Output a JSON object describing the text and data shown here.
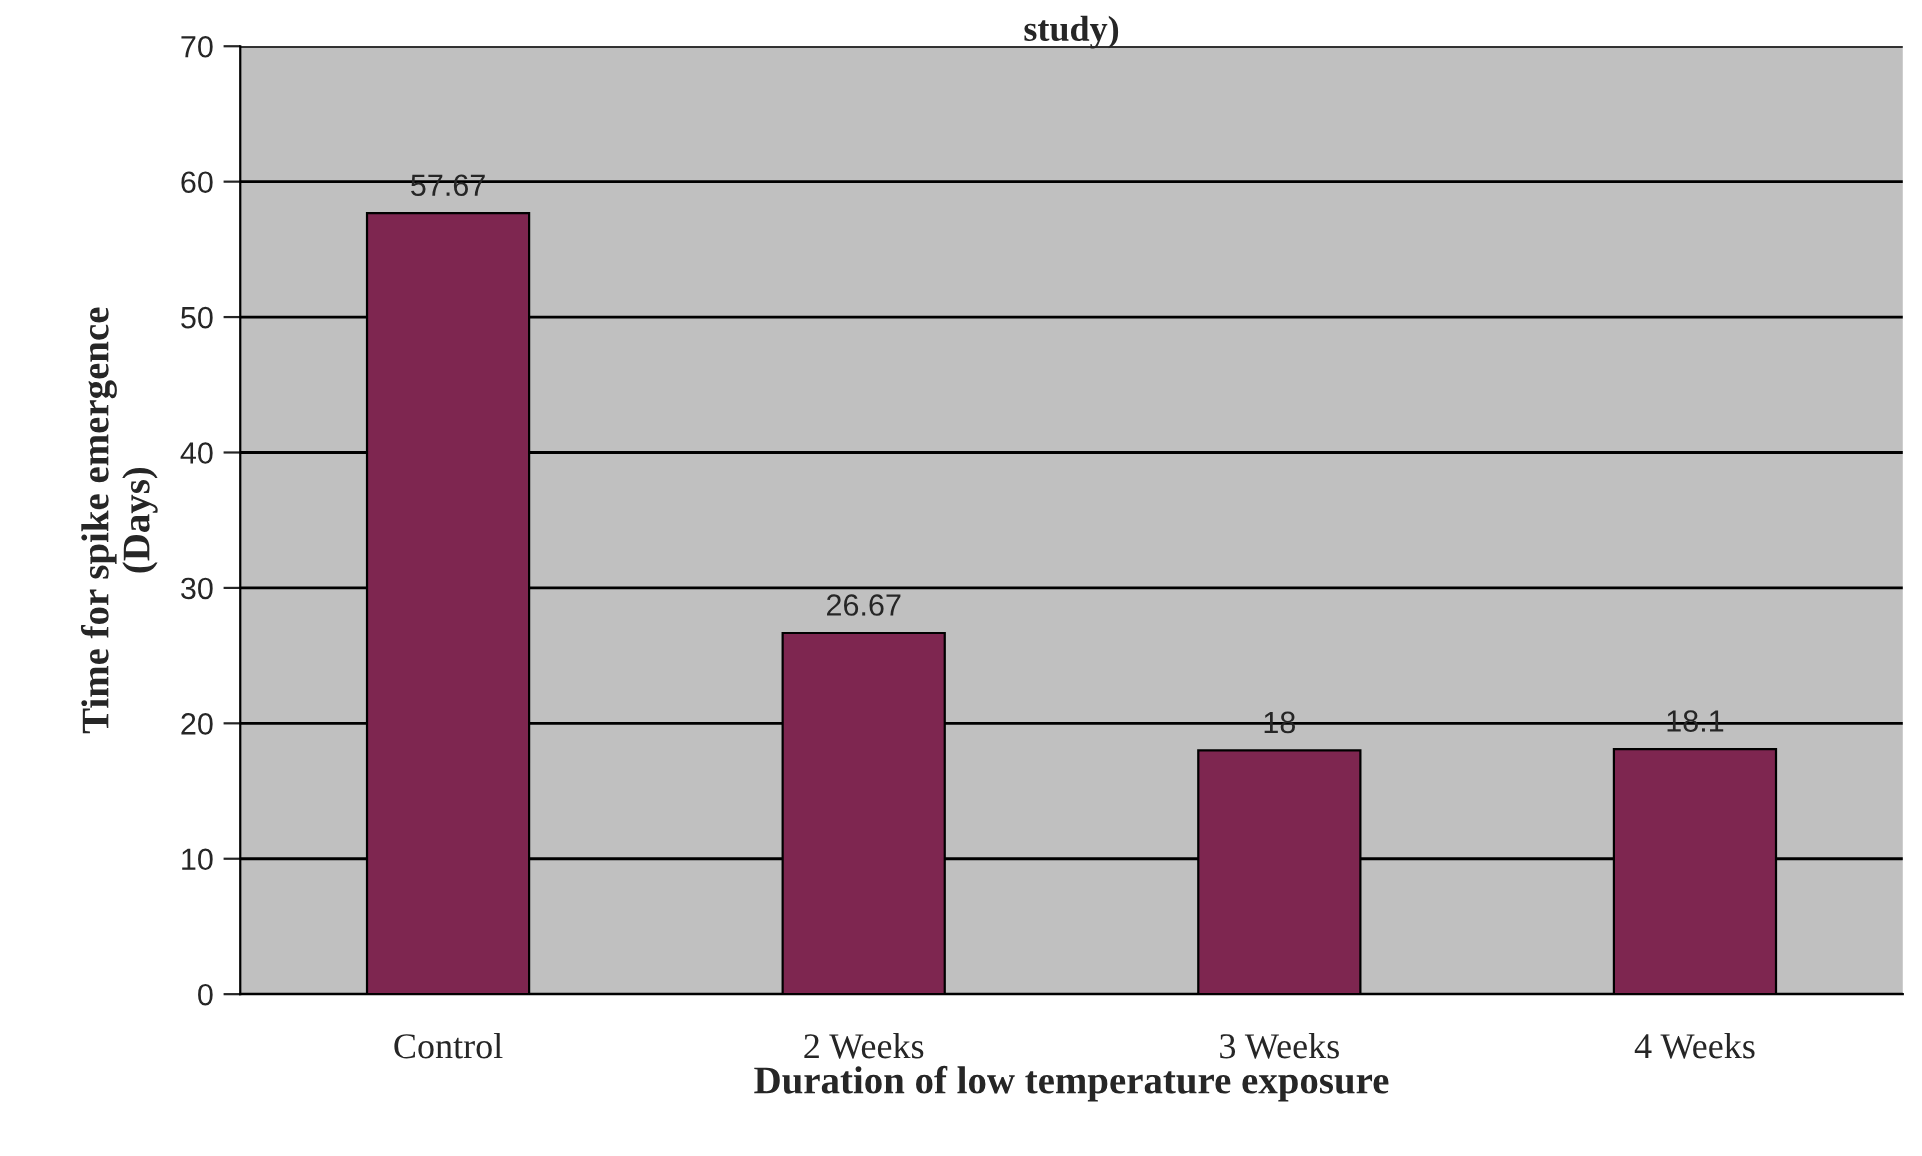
{
  "chart_data": {
    "type": "bar",
    "title": "study)",
    "xlabel": "Duration of low temperature exposure",
    "ylabel": "Time for spike emergence\n(Days)",
    "categories": [
      "Control",
      "2 Weeks",
      "3 Weeks",
      "4 Weeks"
    ],
    "values": [
      57.67,
      26.67,
      18,
      18.1
    ],
    "color": "#7e2650",
    "ylim": [
      0,
      70
    ],
    "yticks": [
      0,
      10,
      20,
      30,
      40,
      50,
      60,
      70
    ],
    "grid": "y",
    "data_labels": true
  }
}
